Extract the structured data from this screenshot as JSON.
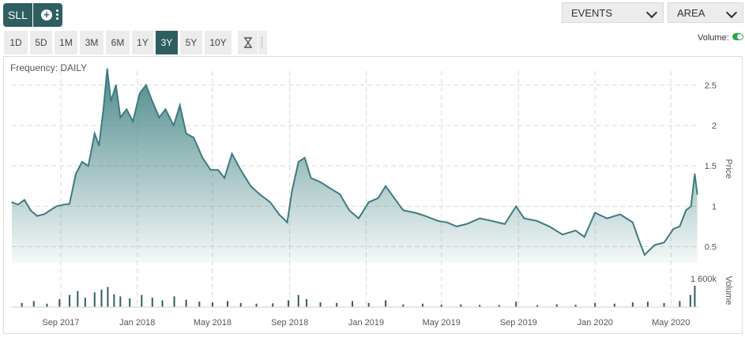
{
  "toolbar": {
    "symbol": "SLL",
    "add_symbol_icon": "plus-circle-icon",
    "more_icon": "vertical-dots-icon",
    "events_label": "EVENTS",
    "chart_type_label": "AREA",
    "ranges": [
      "1D",
      "5D",
      "1M",
      "3M",
      "6M",
      "1Y",
      "3Y",
      "5Y",
      "10Y"
    ],
    "active_range": "3Y",
    "custom_range_icon": "hourglass-icon",
    "volume_toggle_label": "Volume:",
    "volume_enabled": true
  },
  "colors": {
    "accent": "#2f5e61",
    "line": "#3e7b7e",
    "area_top": "#4e8a8b",
    "toggle_on": "#29a745"
  },
  "chart_data": {
    "type": "area",
    "frequency_label": "Frequency: DAILY",
    "ylabel": "Price",
    "volume_label": "Volume",
    "ylim": [
      0.3,
      2.85
    ],
    "yticks": [
      0.5,
      1,
      1.5,
      2,
      2.5
    ],
    "ytick_labels": [
      "0.5",
      "1",
      "1.5",
      "2",
      "2.5"
    ],
    "xlim": [
      "2017-06-15",
      "2020-06-15"
    ],
    "xticks": [
      "2017-09-01",
      "2018-01-01",
      "2018-05-01",
      "2018-09-01",
      "2019-01-01",
      "2019-05-01",
      "2019-09-01",
      "2020-01-01",
      "2020-05-01"
    ],
    "xtick_labels": [
      "Sep 2017",
      "Jan 2018",
      "May 2018",
      "Sep 2018",
      "Jan 2019",
      "May 2019",
      "Sep 2019",
      "Jan 2020",
      "May 2020"
    ],
    "volume_max_label": "1 600k",
    "volume_max": 1600000,
    "grid": true,
    "series": [
      {
        "values": [
          [
            "2017-06-15",
            1.05
          ],
          [
            "2017-06-25",
            1.02
          ],
          [
            "2017-07-05",
            1.08
          ],
          [
            "2017-07-15",
            0.95
          ],
          [
            "2017-07-25",
            0.88
          ],
          [
            "2017-08-05",
            0.9
          ],
          [
            "2017-08-15",
            0.95
          ],
          [
            "2017-08-25",
            1.0
          ],
          [
            "2017-09-05",
            1.02
          ],
          [
            "2017-09-15",
            1.03
          ],
          [
            "2017-09-25",
            1.4
          ],
          [
            "2017-10-05",
            1.55
          ],
          [
            "2017-10-15",
            1.5
          ],
          [
            "2017-10-25",
            1.9
          ],
          [
            "2017-11-01",
            1.75
          ],
          [
            "2017-11-08",
            2.2
          ],
          [
            "2017-11-14",
            2.7
          ],
          [
            "2017-11-20",
            2.3
          ],
          [
            "2017-11-28",
            2.5
          ],
          [
            "2017-12-05",
            2.1
          ],
          [
            "2017-12-15",
            2.2
          ],
          [
            "2017-12-25",
            2.05
          ],
          [
            "2018-01-05",
            2.4
          ],
          [
            "2018-01-15",
            2.5
          ],
          [
            "2018-01-25",
            2.3
          ],
          [
            "2018-02-05",
            2.1
          ],
          [
            "2018-02-15",
            2.2
          ],
          [
            "2018-02-28",
            2.0
          ],
          [
            "2018-03-10",
            2.25
          ],
          [
            "2018-03-20",
            1.9
          ],
          [
            "2018-04-01",
            1.85
          ],
          [
            "2018-04-15",
            1.6
          ],
          [
            "2018-04-28",
            1.45
          ],
          [
            "2018-05-10",
            1.45
          ],
          [
            "2018-05-20",
            1.35
          ],
          [
            "2018-06-01",
            1.65
          ],
          [
            "2018-06-15",
            1.45
          ],
          [
            "2018-07-01",
            1.25
          ],
          [
            "2018-07-15",
            1.15
          ],
          [
            "2018-08-01",
            1.05
          ],
          [
            "2018-08-15",
            0.9
          ],
          [
            "2018-08-28",
            0.8
          ],
          [
            "2018-09-05",
            1.2
          ],
          [
            "2018-09-15",
            1.55
          ],
          [
            "2018-09-25",
            1.6
          ],
          [
            "2018-10-05",
            1.35
          ],
          [
            "2018-10-20",
            1.3
          ],
          [
            "2018-11-05",
            1.22
          ],
          [
            "2018-11-20",
            1.15
          ],
          [
            "2018-12-05",
            0.95
          ],
          [
            "2018-12-20",
            0.85
          ],
          [
            "2019-01-05",
            1.05
          ],
          [
            "2019-01-20",
            1.1
          ],
          [
            "2019-02-01",
            1.25
          ],
          [
            "2019-02-15",
            1.1
          ],
          [
            "2019-03-01",
            0.95
          ],
          [
            "2019-03-20",
            0.92
          ],
          [
            "2019-04-05",
            0.88
          ],
          [
            "2019-04-25",
            0.82
          ],
          [
            "2019-05-10",
            0.8
          ],
          [
            "2019-05-25",
            0.75
          ],
          [
            "2019-06-10",
            0.78
          ],
          [
            "2019-07-01",
            0.85
          ],
          [
            "2019-07-20",
            0.82
          ],
          [
            "2019-08-10",
            0.78
          ],
          [
            "2019-08-28",
            1.0
          ],
          [
            "2019-09-10",
            0.85
          ],
          [
            "2019-09-30",
            0.82
          ],
          [
            "2019-10-20",
            0.75
          ],
          [
            "2019-11-10",
            0.65
          ],
          [
            "2019-12-01",
            0.7
          ],
          [
            "2019-12-15",
            0.62
          ],
          [
            "2020-01-01",
            0.92
          ],
          [
            "2020-01-20",
            0.85
          ],
          [
            "2020-02-10",
            0.9
          ],
          [
            "2020-03-01",
            0.8
          ],
          [
            "2020-03-10",
            0.6
          ],
          [
            "2020-03-20",
            0.4
          ],
          [
            "2020-04-05",
            0.52
          ],
          [
            "2020-04-20",
            0.55
          ],
          [
            "2020-05-05",
            0.72
          ],
          [
            "2020-05-15",
            0.75
          ],
          [
            "2020-05-25",
            0.95
          ],
          [
            "2020-06-02",
            1.0
          ],
          [
            "2020-06-08",
            1.4
          ],
          [
            "2020-06-12",
            1.15
          ]
        ]
      }
    ],
    "volume": [
      [
        "2017-07-01",
        300000
      ],
      [
        "2017-07-20",
        450000
      ],
      [
        "2017-08-10",
        250000
      ],
      [
        "2017-08-30",
        600000
      ],
      [
        "2017-09-15",
        900000
      ],
      [
        "2017-09-28",
        1200000
      ],
      [
        "2017-10-10",
        700000
      ],
      [
        "2017-10-25",
        1100000
      ],
      [
        "2017-11-05",
        1300000
      ],
      [
        "2017-11-15",
        1500000
      ],
      [
        "2017-11-25",
        950000
      ],
      [
        "2017-12-05",
        800000
      ],
      [
        "2017-12-20",
        650000
      ],
      [
        "2018-01-08",
        900000
      ],
      [
        "2018-01-25",
        700000
      ],
      [
        "2018-02-10",
        500000
      ],
      [
        "2018-03-01",
        800000
      ],
      [
        "2018-03-20",
        550000
      ],
      [
        "2018-04-10",
        400000
      ],
      [
        "2018-05-01",
        350000
      ],
      [
        "2018-05-25",
        450000
      ],
      [
        "2018-06-15",
        300000
      ],
      [
        "2018-07-10",
        250000
      ],
      [
        "2018-08-05",
        280000
      ],
      [
        "2018-08-30",
        500000
      ],
      [
        "2018-09-15",
        900000
      ],
      [
        "2018-09-28",
        600000
      ],
      [
        "2018-10-20",
        350000
      ],
      [
        "2018-11-15",
        300000
      ],
      [
        "2018-12-10",
        450000
      ],
      [
        "2019-01-05",
        300000
      ],
      [
        "2019-02-01",
        500000
      ],
      [
        "2019-03-01",
        200000
      ],
      [
        "2019-04-01",
        250000
      ],
      [
        "2019-05-01",
        180000
      ],
      [
        "2019-06-01",
        200000
      ],
      [
        "2019-07-01",
        160000
      ],
      [
        "2019-08-01",
        150000
      ],
      [
        "2019-08-28",
        400000
      ],
      [
        "2019-10-01",
        150000
      ],
      [
        "2019-11-01",
        200000
      ],
      [
        "2019-12-01",
        170000
      ],
      [
        "2020-01-01",
        300000
      ],
      [
        "2020-02-01",
        250000
      ],
      [
        "2020-03-01",
        350000
      ],
      [
        "2020-03-25",
        400000
      ],
      [
        "2020-04-20",
        300000
      ],
      [
        "2020-05-15",
        450000
      ],
      [
        "2020-06-01",
        900000
      ],
      [
        "2020-06-08",
        1600000
      ]
    ]
  }
}
